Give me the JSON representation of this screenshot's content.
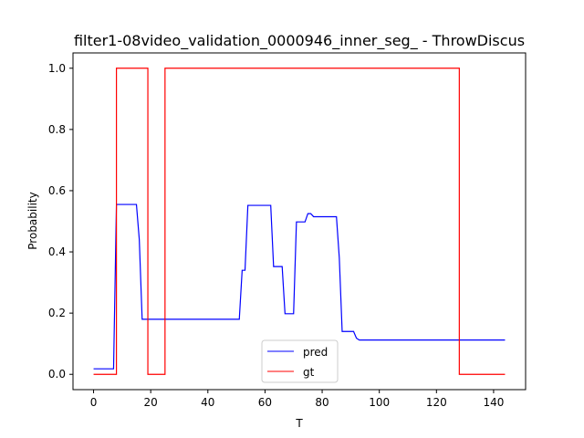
{
  "chart_data": {
    "type": "line",
    "title": "filter1-08video_validation_0000946_inner_seg_ - ThrowDiscus",
    "xlabel": "T",
    "ylabel": "Probability",
    "xlim": [
      -7.2,
      151.2
    ],
    "ylim": [
      -0.05,
      1.05
    ],
    "xticks": [
      0,
      20,
      40,
      60,
      80,
      100,
      120,
      140
    ],
    "xtick_labels": [
      "0",
      "20",
      "40",
      "60",
      "80",
      "100",
      "120",
      "140"
    ],
    "yticks": [
      0.0,
      0.2,
      0.4,
      0.6,
      0.8,
      1.0
    ],
    "ytick_labels": [
      "0.0",
      "0.2",
      "0.4",
      "0.6",
      "0.8",
      "1.0"
    ],
    "grid": false,
    "legend_position": "lower center",
    "series": [
      {
        "name": "pred",
        "color": "#0000ff",
        "points": [
          [
            0,
            0.018
          ],
          [
            7,
            0.018
          ],
          [
            8,
            0.555
          ],
          [
            15,
            0.555
          ],
          [
            16,
            0.44
          ],
          [
            17,
            0.18
          ],
          [
            51,
            0.18
          ],
          [
            52,
            0.34
          ],
          [
            53,
            0.34
          ],
          [
            54,
            0.552
          ],
          [
            62,
            0.552
          ],
          [
            63,
            0.352
          ],
          [
            66,
            0.352
          ],
          [
            67,
            0.198
          ],
          [
            70,
            0.198
          ],
          [
            71,
            0.498
          ],
          [
            74,
            0.498
          ],
          [
            75,
            0.525
          ],
          [
            76,
            0.525
          ],
          [
            77,
            0.515
          ],
          [
            85,
            0.515
          ],
          [
            86,
            0.38
          ],
          [
            87,
            0.14
          ],
          [
            91,
            0.14
          ],
          [
            92,
            0.118
          ],
          [
            93,
            0.112
          ],
          [
            144,
            0.112
          ]
        ]
      },
      {
        "name": "gt",
        "color": "#ff0000",
        "points": [
          [
            0,
            0
          ],
          [
            8,
            0
          ],
          [
            8,
            1
          ],
          [
            19,
            1
          ],
          [
            19,
            0
          ],
          [
            25,
            0
          ],
          [
            25,
            1
          ],
          [
            128,
            1
          ],
          [
            128,
            0
          ],
          [
            144,
            0
          ]
        ]
      }
    ]
  }
}
